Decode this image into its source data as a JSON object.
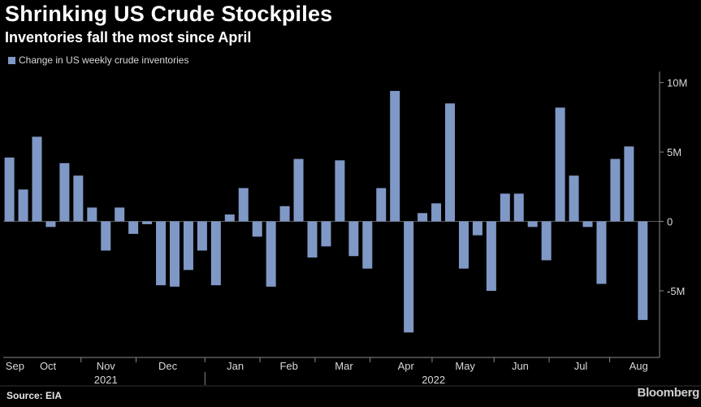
{
  "title": "Shrinking US Crude Stockpiles",
  "subtitle": "Inventories fall the most since April",
  "source": "Source: EIA",
  "brand": "Bloomberg",
  "colors": {
    "background": "#000000",
    "bar": "#7f98c6",
    "axis": "#8a8a8a",
    "grid": "#5a5a5a",
    "text": "#ffffff",
    "muted": "#d8d8d8"
  },
  "chart_data": {
    "type": "bar",
    "legend": {
      "label": "Change in US weekly crude inventories",
      "position": "top-left"
    },
    "ylim": [
      -9.8,
      10.8
    ],
    "y_ticks": [
      {
        "value": 10,
        "label": "10M"
      },
      {
        "value": 5,
        "label": "5M"
      },
      {
        "value": 0,
        "label": "0"
      },
      {
        "value": -5,
        "label": "-5M"
      }
    ],
    "y_axis_side": "right",
    "grid": false,
    "values": [
      4.6,
      2.3,
      6.1,
      -0.4,
      4.2,
      3.3,
      1.0,
      -2.1,
      1.0,
      -0.9,
      -0.2,
      -4.6,
      -4.7,
      -3.5,
      -2.1,
      -4.6,
      0.5,
      2.4,
      -1.1,
      -4.7,
      1.1,
      4.5,
      -2.6,
      -1.8,
      4.4,
      -2.5,
      -3.4,
      2.4,
      9.4,
      -8.0,
      0.6,
      1.3,
      8.5,
      -3.4,
      -1.0,
      -5.0,
      2.0,
      2.0,
      -0.4,
      -2.8,
      8.2,
      3.3,
      -0.4,
      -4.5,
      4.5,
      5.4,
      -7.1
    ],
    "x_labels": [
      {
        "label": "Sep",
        "index": 0.4
      },
      {
        "label": "Oct",
        "index": 2.8
      },
      {
        "label": "Nov",
        "index": 7.0
      },
      {
        "label": "Dec",
        "index": 11.5
      },
      {
        "label": "Jan",
        "index": 16.4
      },
      {
        "label": "Feb",
        "index": 20.3
      },
      {
        "label": "Mar",
        "index": 24.3
      },
      {
        "label": "Apr",
        "index": 28.8
      },
      {
        "label": "May",
        "index": 33.1
      },
      {
        "label": "Jun",
        "index": 37.1
      },
      {
        "label": "Jul",
        "index": 41.5
      },
      {
        "label": "Aug",
        "index": 45.7
      }
    ],
    "month_ticks": [
      5.2,
      9.2,
      14.2,
      18.2,
      22.2,
      26.2,
      30.7,
      35.2,
      39.2,
      43.6
    ],
    "years": [
      {
        "label": "2021",
        "index": 7.0
      },
      {
        "label": "2022",
        "index": 30.8
      }
    ],
    "year_divider_index": 14.2
  }
}
